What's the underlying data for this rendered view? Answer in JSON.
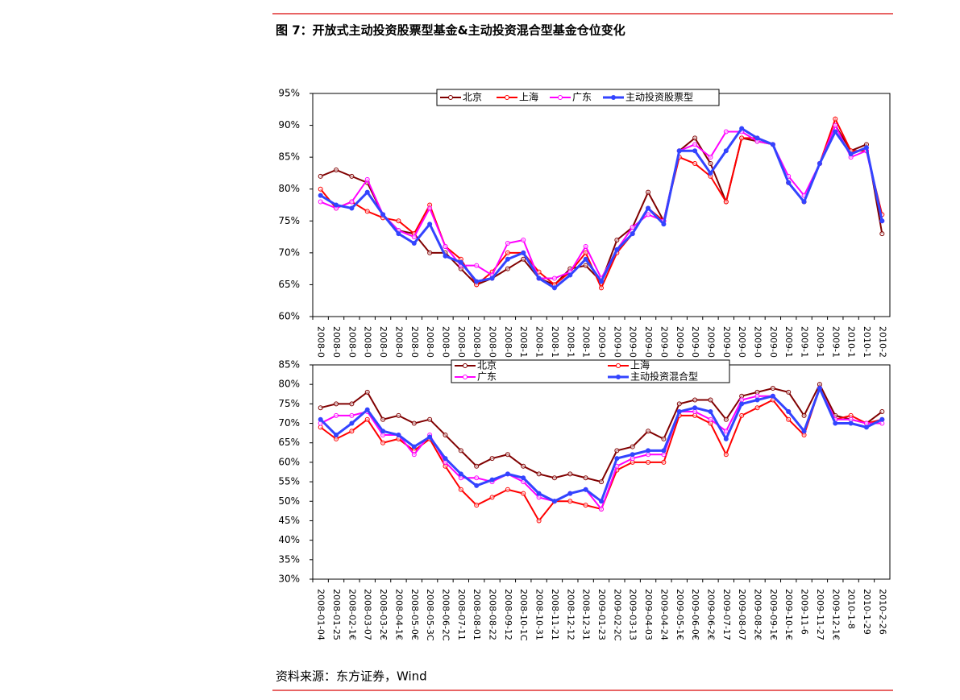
{
  "header": {
    "title": "图 7：开放式主动投资股票型基金&主动投资混合型基金仓位变化"
  },
  "footer": {
    "source": "资料来源：东方证券，Wind"
  },
  "chart_data": [
    {
      "type": "line",
      "legend": "top",
      "categories": [
        "2008-0",
        "2008-0",
        "2008-0",
        "2008-0",
        "2008-0",
        "2008-0",
        "2008-0",
        "2008-0",
        "2008-0",
        "2008-0",
        "2008-0",
        "2008-0",
        "2008-0",
        "2008-1",
        "2008-1",
        "2008-1",
        "2008-1",
        "2008-1",
        "2009-0",
        "2009-0",
        "2009-0",
        "2009-0",
        "2009-0",
        "2009-0",
        "2009-0",
        "2009-0",
        "2009-0",
        "2009-0",
        "2009-0",
        "2009-0",
        "2009-1",
        "2009-1",
        "2009-1",
        "2009-1",
        "2010-1",
        "2010-1",
        "2010-2"
      ],
      "ylim": [
        60,
        95
      ],
      "yticks": [
        {
          "value": 60,
          "label": "60%"
        },
        {
          "value": 65,
          "label": "65%"
        },
        {
          "value": 70,
          "label": "70%"
        },
        {
          "value": 75,
          "label": "75%"
        },
        {
          "value": 80,
          "label": "80%"
        },
        {
          "value": 85,
          "label": "85%"
        },
        {
          "value": 90,
          "label": "90%"
        },
        {
          "value": 95,
          "label": "95%"
        }
      ],
      "series": [
        {
          "name": "北京",
          "color": "#800000",
          "values": [
            82,
            83,
            82,
            81,
            76,
            73.5,
            73,
            70,
            70,
            67.5,
            65,
            66,
            67.5,
            69,
            66,
            65,
            67.5,
            68,
            65.5,
            72,
            74,
            79.5,
            75,
            86,
            88,
            84,
            78,
            88,
            87.5,
            87,
            81,
            78,
            84,
            90,
            86,
            87,
            73
          ]
        },
        {
          "name": "上海",
          "color": "#ff0000",
          "values": [
            80,
            77,
            78,
            76.5,
            75.5,
            75,
            73,
            77.5,
            71,
            69,
            65,
            67,
            70,
            70,
            67,
            65,
            67,
            70,
            64.5,
            70,
            73,
            77,
            75,
            85,
            84,
            82,
            78,
            88,
            88,
            87,
            81,
            78,
            84,
            91,
            86,
            86,
            76
          ]
        },
        {
          "name": "广东",
          "color": "#ff00ff",
          "values": [
            78,
            77,
            78,
            81.5,
            76,
            73.5,
            72.5,
            77,
            71,
            68,
            68,
            66.5,
            71.5,
            72,
            66,
            66,
            67,
            71,
            66,
            70.5,
            74,
            76,
            75,
            86,
            87,
            85,
            89,
            89,
            87.5,
            87,
            82,
            79,
            84,
            90,
            85,
            86,
            75
          ]
        },
        {
          "name": "主动投资股票型",
          "color": "#3344ff",
          "values": [
            79,
            77.5,
            77,
            79.5,
            76,
            73,
            71.5,
            74.5,
            69.5,
            68.5,
            65.5,
            66,
            69,
            70,
            66,
            64.5,
            66.5,
            69,
            65.5,
            70.5,
            73,
            77,
            74.5,
            86,
            86,
            82.5,
            86,
            89.5,
            88,
            87,
            81,
            78,
            84,
            89,
            85.5,
            86.5,
            75
          ]
        }
      ]
    },
    {
      "type": "line",
      "legend": "top",
      "categories": [
        "2008-01-04",
        "2008-01-25",
        "2008-02-1€",
        "2008-03-07",
        "2008-03-2€",
        "2008-04-1€",
        "2008-05-0€",
        "2008-05-3C",
        "2008-06-2C",
        "2008-07-11",
        "2008-08-01",
        "2008-08-22",
        "2008-09-12",
        "2008-10-1C",
        "2008-10-31",
        "2008-11-21",
        "2008-12-12",
        "2008-12-31",
        "2009-01-23",
        "2009-02-2C",
        "2009-03-13",
        "2009-04-03",
        "2009-04-24",
        "2009-05-1€",
        "2009-06-0€",
        "2009-06-2€",
        "2009-07-17",
        "2009-08-07",
        "2009-08-2€",
        "2009-09-1€",
        "2009-10-1€",
        "2009-11-6",
        "2009-11-27",
        "2009-12-1€",
        "2010-1-8",
        "2010-1-29",
        "2010-2-26"
      ],
      "ylim": [
        30,
        85
      ],
      "yticks": [
        {
          "value": 30,
          "label": "30%"
        },
        {
          "value": 35,
          "label": "35%"
        },
        {
          "value": 40,
          "label": "40%"
        },
        {
          "value": 45,
          "label": "45%"
        },
        {
          "value": 50,
          "label": "50%"
        },
        {
          "value": 55,
          "label": "55%"
        },
        {
          "value": 60,
          "label": "60%"
        },
        {
          "value": 65,
          "label": "65%"
        },
        {
          "value": 70,
          "label": "70%"
        },
        {
          "value": 75,
          "label": "75%"
        },
        {
          "value": 80,
          "label": "80%"
        },
        {
          "value": 85,
          "label": "85%"
        }
      ],
      "series": [
        {
          "name": "北京",
          "color": "#800000",
          "values": [
            74,
            75,
            75,
            78,
            71,
            72,
            70,
            71,
            67,
            63,
            59,
            61,
            62,
            59,
            57,
            56,
            57,
            56,
            55,
            63,
            64,
            68,
            66,
            75,
            76,
            76,
            71,
            77,
            78,
            79,
            78,
            72,
            80,
            72,
            71,
            70,
            73
          ]
        },
        {
          "name": "上海",
          "color": "#ff0000",
          "values": [
            69,
            66,
            68,
            71,
            65,
            66,
            63,
            66,
            59,
            53,
            49,
            51,
            53,
            52,
            45,
            50,
            50,
            49,
            48,
            58,
            60,
            60,
            60,
            72,
            72,
            70,
            62,
            72,
            74,
            76,
            71,
            67,
            79,
            71,
            72,
            70,
            71
          ]
        },
        {
          "name": "广东",
          "color": "#ff00ff",
          "values": [
            70,
            72,
            72,
            73,
            67,
            67,
            62,
            67,
            60,
            56,
            56,
            55,
            57,
            55,
            51,
            50,
            52,
            53,
            48,
            59,
            61,
            62,
            62,
            73,
            73,
            71,
            68,
            76,
            77,
            77,
            73,
            68,
            79,
            71,
            71,
            70,
            70
          ]
        },
        {
          "name": "主动投资混合型",
          "color": "#3344ff",
          "values": [
            71,
            67,
            70,
            73.5,
            68,
            67,
            64,
            66.5,
            61,
            57,
            54,
            55.5,
            57,
            56,
            52,
            50,
            52,
            53,
            50,
            61,
            62,
            63,
            63,
            73,
            74,
            73,
            66,
            75,
            76,
            77,
            73,
            68,
            79,
            70,
            70,
            69,
            71
          ]
        }
      ]
    }
  ]
}
